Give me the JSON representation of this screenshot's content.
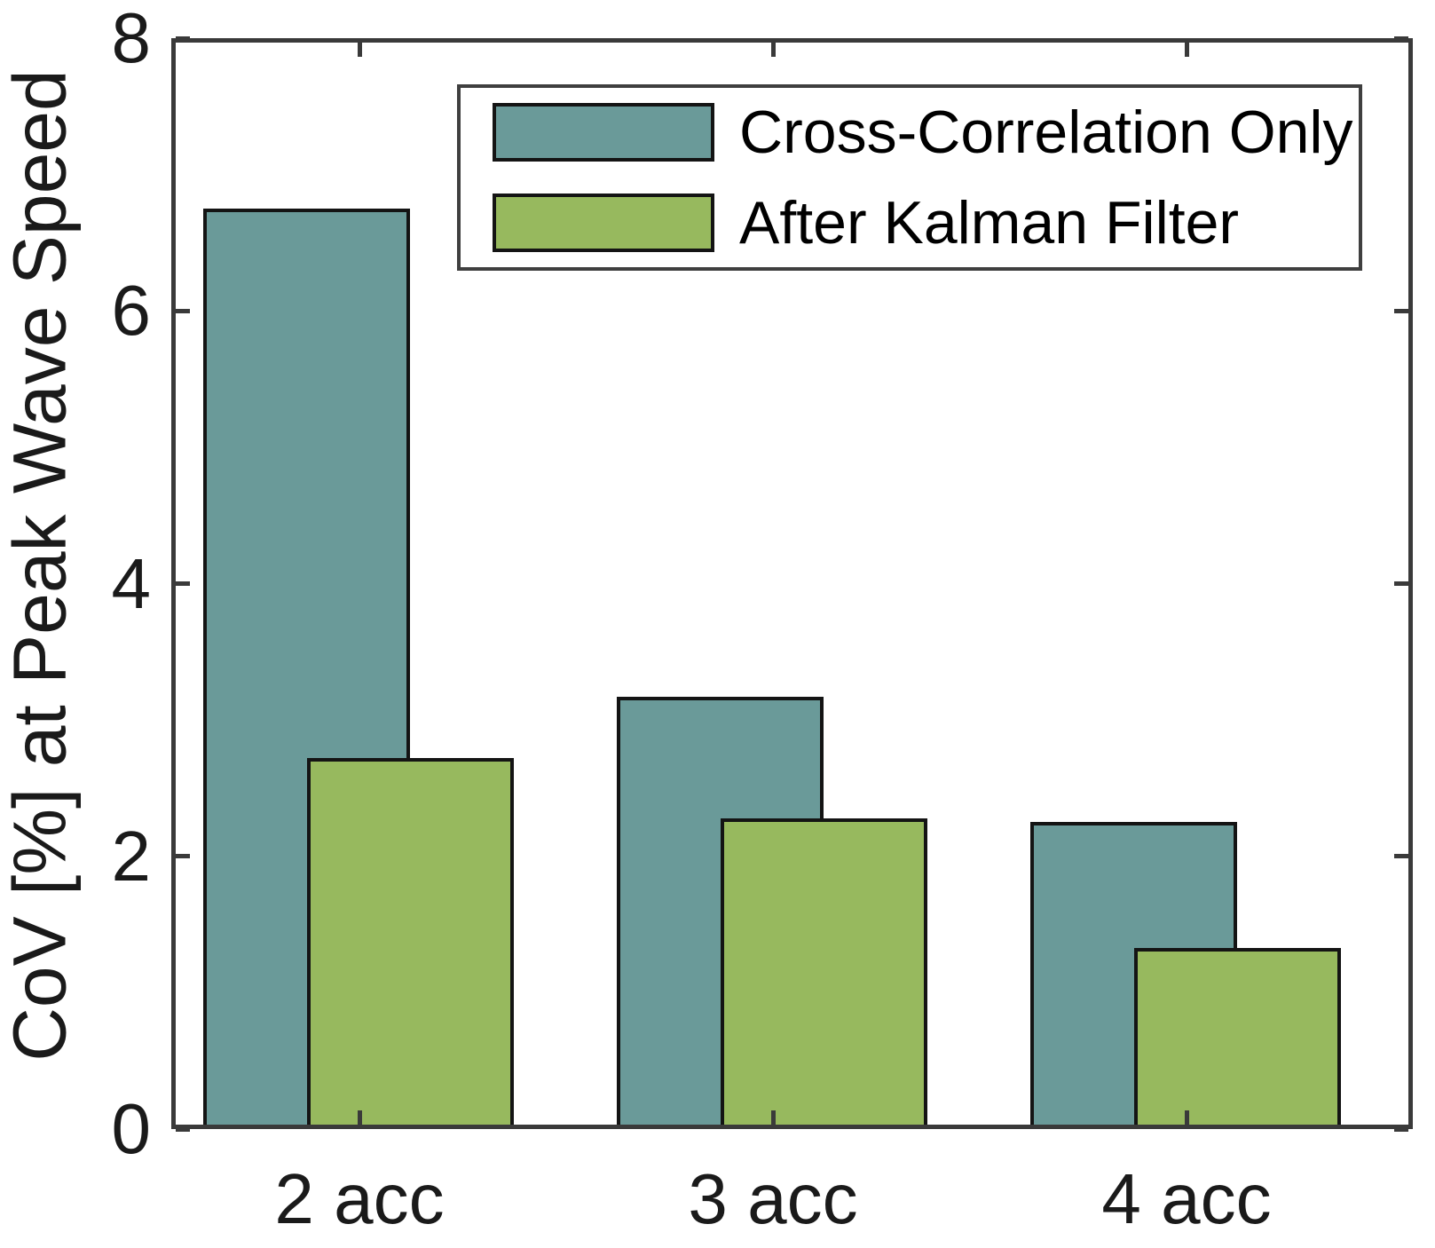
{
  "figure": {
    "background": "#ffffff",
    "frame_color": "#3a3a3a",
    "text_color": "#1a1a1a",
    "bar_edge_color": "#141414"
  },
  "chart_data": {
    "type": "bar",
    "bar_style": "overlapped-pairs",
    "categories": [
      "2 acc",
      "3 acc",
      "4 acc"
    ],
    "series": [
      {
        "name": "Cross-Correlation Only",
        "color": "#6a9a99",
        "values": [
          6.75,
          3.17,
          2.25
        ]
      },
      {
        "name": "After Kalman Filter",
        "color": "#97b95e",
        "values": [
          2.72,
          2.28,
          1.33
        ]
      }
    ],
    "title": "",
    "xlabel": "",
    "ylabel": "CoV [%] at Peak Wave Speed",
    "ylim": [
      0,
      8
    ],
    "yticks": [
      0,
      2,
      4,
      6,
      8
    ],
    "ytick_labels": [
      "0",
      "2",
      "4",
      "6",
      "8"
    ],
    "grid": false,
    "legend_position": "upper-center-inside",
    "legend": {
      "items": [
        "Cross-Correlation Only",
        "After Kalman Filter"
      ]
    }
  }
}
